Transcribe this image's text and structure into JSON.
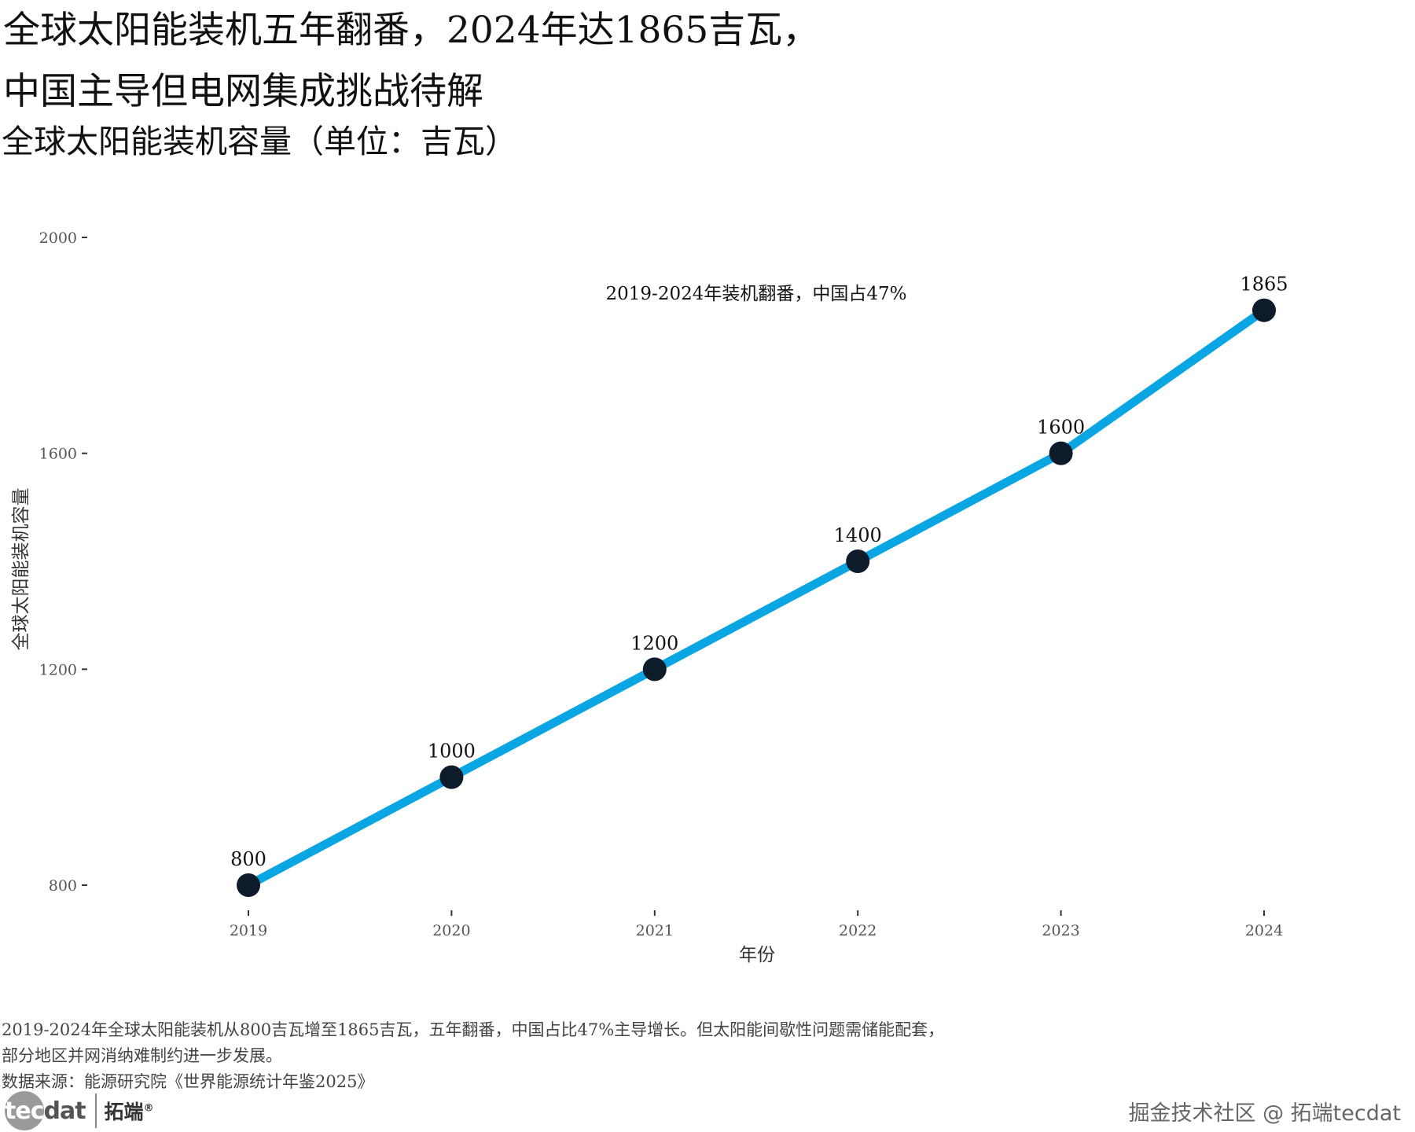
{
  "title": {
    "line1": "全球太阳能装机五年翻番，2024年达1865吉瓦，",
    "line2": "中国主导但电网集成挑战待解"
  },
  "subtitle": "全球太阳能装机容量（单位：吉瓦）",
  "chart_data": {
    "type": "line",
    "x": [
      "2019",
      "2020",
      "2021",
      "2022",
      "2023",
      "2024"
    ],
    "series": [
      {
        "values": [
          800,
          1000,
          1200,
          1400,
          1600,
          1865
        ]
      }
    ],
    "data_labels": [
      "800",
      "1000",
      "1200",
      "1400",
      "1600",
      "1865"
    ],
    "xlabel": "年份",
    "ylabel": "全球太阳能装机容量",
    "ylim": [
      800,
      2000
    ],
    "yticks": [
      800,
      1200,
      1600,
      2000
    ],
    "ytick_labels": [
      "800",
      "1200",
      "1600",
      "2000"
    ],
    "annotation": "2019-2024年装机翻番，中国占47%",
    "grid": false,
    "line_color": "#0aa5e3",
    "marker_color": "#0d1b2a"
  },
  "caption": {
    "line1": "2019-2024年全球太阳能装机从800吉瓦增至1865吉瓦，五年翻番，中国占比47%主导增长。但太阳能间歇性问题需储能配套，",
    "line2": "部分地区并网消纳难制约进一步发展。",
    "source": "数据来源：能源研究院《世界能源统计年鉴2025》"
  },
  "logo": {
    "tec": "tec",
    "dat": "dat",
    "cn": "拓端",
    "mark": "®"
  },
  "watermark": "掘金技术社区 @ 拓端tecdat"
}
